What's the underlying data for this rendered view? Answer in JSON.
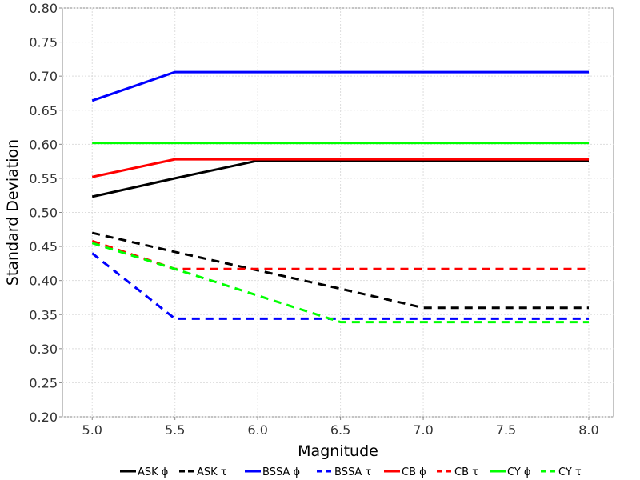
{
  "chart_data": {
    "type": "line",
    "xlabel": "Magnitude",
    "ylabel": "Standard Deviation",
    "xlim": [
      4.82,
      8.15
    ],
    "ylim": [
      0.2,
      0.8
    ],
    "x_ticks": [
      "5.0",
      "5.5",
      "6.0",
      "6.5",
      "7.0",
      "7.5",
      "8.0"
    ],
    "y_ticks": [
      "0.20",
      "0.25",
      "0.30",
      "0.35",
      "0.40",
      "0.45",
      "0.50",
      "0.55",
      "0.60",
      "0.65",
      "0.70",
      "0.75",
      "0.80"
    ],
    "grid": true,
    "legend_position": "bottom",
    "series": [
      {
        "name": "ASK ϕ",
        "color": "#000000",
        "dash": "solid",
        "x": [
          5.0,
          5.5,
          6.0,
          6.5,
          7.0,
          7.5,
          8.0
        ],
        "y": [
          0.523,
          0.55,
          0.576,
          0.576,
          0.576,
          0.576,
          0.576
        ]
      },
      {
        "name": "ASK τ",
        "color": "#000000",
        "dash": "dashed",
        "x": [
          5.0,
          5.5,
          6.0,
          6.5,
          7.0,
          7.5,
          8.0
        ],
        "y": [
          0.47,
          0.442,
          0.415,
          0.388,
          0.36,
          0.36,
          0.36
        ]
      },
      {
        "name": "BSSA ϕ",
        "color": "#0000ff",
        "dash": "solid",
        "x": [
          5.0,
          5.5,
          6.0,
          6.5,
          7.0,
          7.5,
          8.0
        ],
        "y": [
          0.664,
          0.706,
          0.706,
          0.706,
          0.706,
          0.706,
          0.706
        ]
      },
      {
        "name": "BSSA τ",
        "color": "#0000ff",
        "dash": "dashed",
        "x": [
          5.0,
          5.5,
          6.0,
          6.5,
          7.0,
          7.5,
          8.0
        ],
        "y": [
          0.44,
          0.344,
          0.344,
          0.344,
          0.344,
          0.344,
          0.344
        ]
      },
      {
        "name": "CB ϕ",
        "color": "#ff0000",
        "dash": "solid",
        "x": [
          5.0,
          5.5,
          6.0,
          6.5,
          7.0,
          7.5,
          8.0
        ],
        "y": [
          0.552,
          0.578,
          0.578,
          0.578,
          0.578,
          0.578,
          0.578
        ]
      },
      {
        "name": "CB τ",
        "color": "#ff0000",
        "dash": "dashed",
        "x": [
          5.0,
          5.5,
          6.0,
          6.5,
          7.0,
          7.5,
          8.0
        ],
        "y": [
          0.458,
          0.417,
          0.417,
          0.417,
          0.417,
          0.417,
          0.417
        ]
      },
      {
        "name": "CY ϕ",
        "color": "#00ff00",
        "dash": "solid",
        "x": [
          5.0,
          5.5,
          6.0,
          6.5,
          7.0,
          7.5,
          8.0
        ],
        "y": [
          0.602,
          0.602,
          0.602,
          0.602,
          0.602,
          0.602,
          0.602
        ]
      },
      {
        "name": "CY τ",
        "color": "#00ff00",
        "dash": "dashed",
        "x": [
          5.0,
          5.5,
          6.0,
          6.5,
          7.0,
          7.5,
          8.0
        ],
        "y": [
          0.455,
          0.417,
          0.378,
          0.339,
          0.339,
          0.339,
          0.339
        ]
      }
    ]
  }
}
